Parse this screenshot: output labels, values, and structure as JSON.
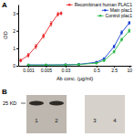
{
  "panel_labels": [
    "A",
    "B"
  ],
  "chart_data": {
    "type": "line",
    "x_label": "Ab conc. (μg/ml)",
    "y_label": "OD",
    "log": "x",
    "legend": "upper right",
    "xlim": [
      0.0004,
      12
    ],
    "xticks": [
      0.001,
      0.005,
      0.03,
      0.5,
      2.5,
      10
    ],
    "ylim": [
      0,
      3.5
    ],
    "yticks": [
      0,
      1,
      2,
      3
    ],
    "series": [
      {
        "name": "Recombinant human PLAC1",
        "color": "#e8262a",
        "x": [
          0.0005,
          0.001,
          0.002,
          0.004,
          0.008,
          0.015,
          0.02
        ],
        "values": [
          0.3,
          0.6,
          1.1,
          1.7,
          2.4,
          2.95,
          3.0
        ],
        "errors": [
          0.08,
          0.1,
          0.12,
          0.12,
          0.12,
          0.1,
          0.08
        ]
      },
      {
        "name": "Main plac1",
        "color": "#1a3fd6",
        "x": [
          0.001,
          0.005,
          0.03,
          0.1,
          0.5,
          1,
          2.5,
          5,
          10
        ],
        "values": [
          0.05,
          0.05,
          0.06,
          0.08,
          0.2,
          0.4,
          1.1,
          1.9,
          2.45
        ],
        "errors": [
          0.03,
          0.03,
          0.03,
          0.04,
          0.05,
          0.06,
          0.08,
          0.1,
          0.08
        ]
      },
      {
        "name": "Control plac1",
        "color": "#2db84a",
        "x": [
          0.001,
          0.005,
          0.03,
          0.1,
          0.5,
          1,
          2.5,
          5,
          10
        ],
        "values": [
          0.04,
          0.04,
          0.05,
          0.07,
          0.15,
          0.3,
          0.8,
          1.5,
          2.0
        ],
        "errors": [
          0.03,
          0.03,
          0.03,
          0.03,
          0.04,
          0.05,
          0.07,
          0.08,
          0.1
        ]
      }
    ]
  },
  "blot": {
    "marker_label": "25 KD",
    "lanes": [
      {
        "label": "1",
        "band": true
      },
      {
        "label": "2",
        "band": true
      },
      {
        "label": "3",
        "band": false
      },
      {
        "label": "4",
        "band": false
      }
    ]
  }
}
